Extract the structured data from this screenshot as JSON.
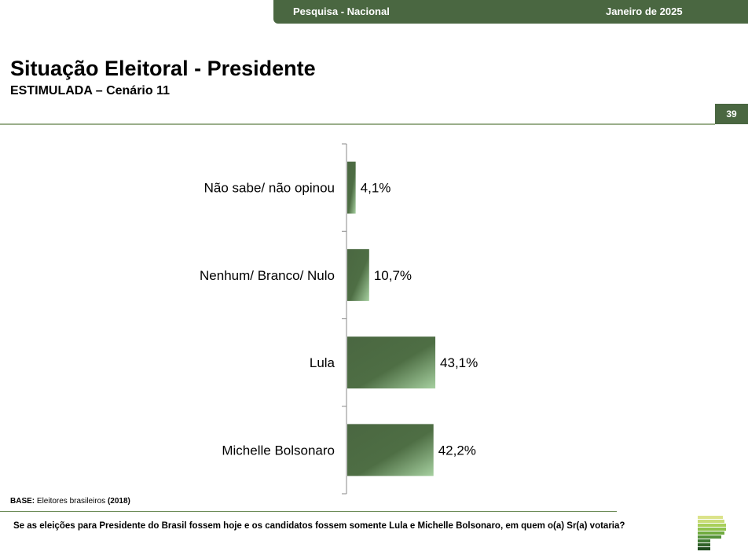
{
  "header": {
    "survey": "Pesquisa - Nacional",
    "date": "Janeiro de 2025"
  },
  "title": "Situação Eleitoral - Presidente",
  "subtitle": "ESTIMULADA – Cenário 11",
  "page_number": "39",
  "footer": {
    "base_label": "BASE:",
    "base_text": " Eleitores brasileiros ",
    "base_year": "(2018)",
    "question": "Se as eleições para Presidente do Brasil fossem hoje e os candidatos fossem somente Lula e Michelle Bolsonaro, em quem o(a) Sr(a) votaria?"
  },
  "colors": {
    "brand": "#4a6741",
    "bar_dark": "#4a6741",
    "bar_light": "#a6d0a0"
  },
  "chart_data": {
    "type": "bar",
    "orientation": "horizontal",
    "categories": [
      "Não sabe/ não opinou",
      "Nenhum/ Branco/ Nulo",
      "Lula",
      "Michelle Bolsonaro"
    ],
    "values": [
      4.1,
      10.7,
      43.1,
      42.2
    ],
    "labels": [
      "4,1%",
      "10,7%",
      "43,1%",
      "42,2%"
    ],
    "unit": "%",
    "grid": false
  }
}
